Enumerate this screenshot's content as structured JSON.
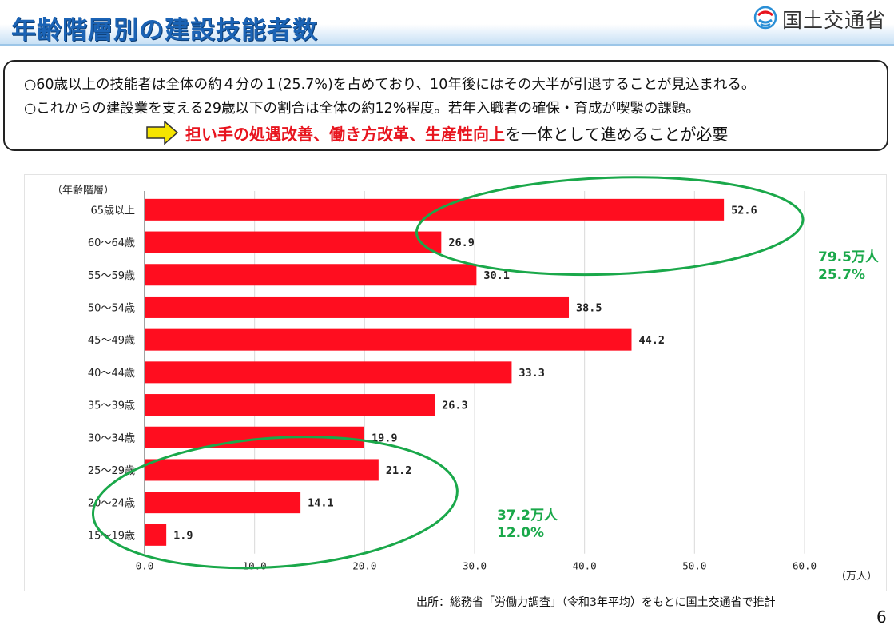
{
  "header": {
    "title": "年齢階層別の建設技能者数",
    "logo_text": "国土交通省",
    "logo_icon": "mlit-logo-icon"
  },
  "summary": {
    "line1": "○60歳以上の技能者は全体の約４分の１(25.7%)を占めており、10年後にはその大半が引退することが見込まれる。",
    "line2": "○これからの建設業を支える29歳以下の割合は全体の約12%程度。若年入職者の確保・育成が喫緊の課題。",
    "conclusion_emphasis": "担い手の処遇改善、働き方改革、生産性向上",
    "conclusion_rest": "を一体として進めることが必要",
    "arrow_icon": "right-arrow-icon",
    "arrow_color": "#f5e400"
  },
  "chart_data": {
    "type": "bar",
    "orientation": "horizontal",
    "ylabel": "（年齢階層）",
    "xlabel": "（万人）",
    "xlim": [
      0,
      60
    ],
    "xticks": [
      "0.0",
      "10.0",
      "20.0",
      "30.0",
      "40.0",
      "50.0",
      "60.0"
    ],
    "grid": true,
    "bar_color": "#ff0d1f",
    "categories": [
      "65歳以上",
      "60～64歳",
      "55～59歳",
      "50～54歳",
      "45～49歳",
      "40～44歳",
      "35～39歳",
      "30～34歳",
      "25～29歳",
      "20～24歳",
      "15～19歳"
    ],
    "values": [
      52.6,
      26.9,
      30.1,
      38.5,
      44.2,
      33.3,
      26.3,
      19.9,
      21.2,
      14.1,
      1.9
    ],
    "value_labels": [
      "52.6",
      "26.9",
      "30.1",
      "38.5",
      "44.2",
      "33.3",
      "26.3",
      "19.9",
      "21.2",
      "14.1",
      "1.9"
    ],
    "annotations": [
      {
        "label_line1": "79.5万人",
        "label_line2": "25.7%",
        "color": "#1aa84a",
        "covers": [
          "65歳以上",
          "60～64歳"
        ]
      },
      {
        "label_line1": "37.2万人",
        "label_line2": "12.0%",
        "color": "#1aa84a",
        "covers": [
          "25～29歳",
          "20～24歳",
          "15～19歳"
        ]
      }
    ]
  },
  "footer": {
    "source": "出所：総務省「労働力調査」（令和3年平均）をもとに国土交通省で推計",
    "page_number": "6"
  }
}
